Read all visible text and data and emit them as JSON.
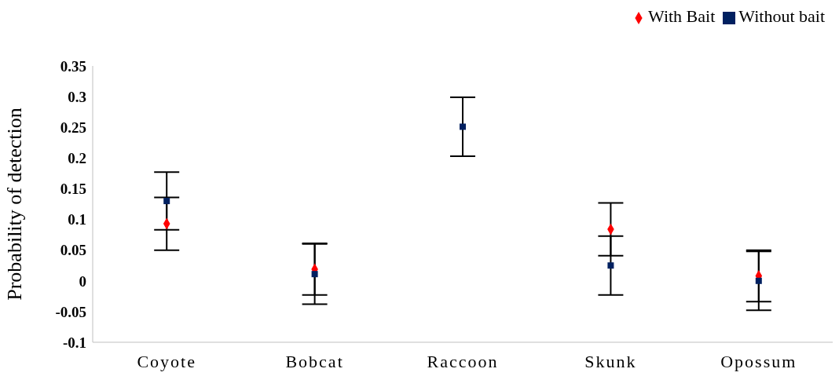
{
  "chart_data": {
    "type": "scatter",
    "ylabel": "Probability of detection",
    "categories": [
      "Coyote",
      "Bobcat",
      "Raccoon",
      "Skunk",
      "Opossum"
    ],
    "series": [
      {
        "name": "With Bait",
        "color": "#ff0000",
        "marker": "diamond",
        "values": [
          0.093,
          0.019,
          null,
          0.084,
          0.008
        ],
        "errors": [
          0.043,
          0.042,
          null,
          0.043,
          0.042
        ]
      },
      {
        "name": "Without bait",
        "color": "#002060",
        "marker": "square",
        "values": [
          0.13,
          0.011,
          0.251,
          0.025,
          0
        ],
        "errors": [
          0.047,
          0.049,
          0.048,
          0.048,
          0.048
        ]
      }
    ],
    "ylim": [
      -0.1,
      0.35
    ],
    "yticks": [
      -0.1,
      -0.05,
      0,
      0.05,
      0.1,
      0.15,
      0.2,
      0.25,
      0.3,
      0.35
    ],
    "grid": false,
    "legend": "top right"
  }
}
